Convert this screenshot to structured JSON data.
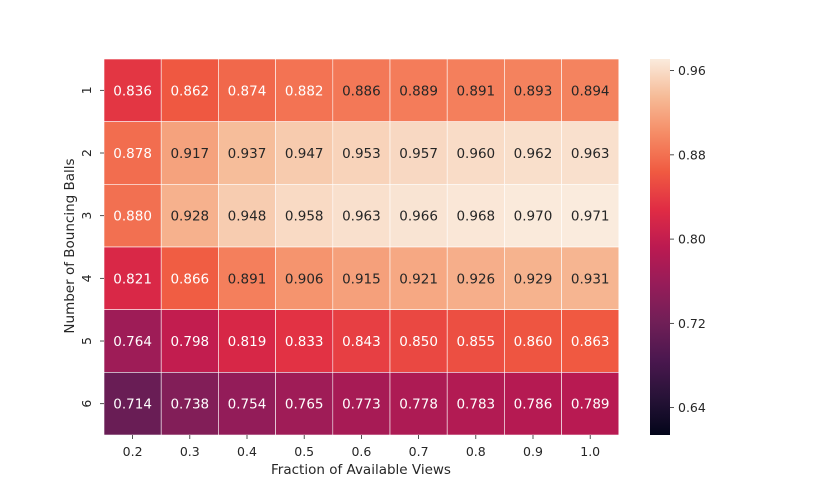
{
  "chart_data": {
    "type": "heatmap",
    "title": "",
    "xlabel": "Fraction of Available Views",
    "ylabel": "Number of Bouncing Balls",
    "x_categories": [
      "0.2",
      "0.3",
      "0.4",
      "0.5",
      "0.6",
      "0.7",
      "0.8",
      "0.9",
      "1.0"
    ],
    "y_categories": [
      "1",
      "2",
      "3",
      "4",
      "5",
      "6"
    ],
    "values": [
      [
        0.836,
        0.862,
        0.874,
        0.882,
        0.886,
        0.889,
        0.891,
        0.893,
        0.894
      ],
      [
        0.878,
        0.917,
        0.937,
        0.947,
        0.953,
        0.957,
        0.96,
        0.962,
        0.963
      ],
      [
        0.88,
        0.928,
        0.948,
        0.958,
        0.963,
        0.966,
        0.968,
        0.97,
        0.971
      ],
      [
        0.821,
        0.866,
        0.891,
        0.906,
        0.915,
        0.921,
        0.926,
        0.929,
        0.931
      ],
      [
        0.764,
        0.798,
        0.819,
        0.833,
        0.843,
        0.85,
        0.855,
        0.86,
        0.863
      ],
      [
        0.714,
        0.738,
        0.754,
        0.765,
        0.773,
        0.778,
        0.783,
        0.786,
        0.789
      ]
    ],
    "value_labels": [
      [
        "0.836",
        "0.862",
        "0.874",
        "0.882",
        "0.886",
        "0.889",
        "0.891",
        "0.893",
        "0.894"
      ],
      [
        "0.878",
        "0.917",
        "0.937",
        "0.947",
        "0.953",
        "0.957",
        "0.960",
        "0.962",
        "0.963"
      ],
      [
        "0.880",
        "0.928",
        "0.948",
        "0.958",
        "0.963",
        "0.966",
        "0.968",
        "0.970",
        "0.971"
      ],
      [
        "0.821",
        "0.866",
        "0.891",
        "0.906",
        "0.915",
        "0.921",
        "0.926",
        "0.929",
        "0.931"
      ],
      [
        "0.764",
        "0.798",
        "0.819",
        "0.833",
        "0.843",
        "0.850",
        "0.855",
        "0.860",
        "0.863"
      ],
      [
        "0.714",
        "0.738",
        "0.754",
        "0.765",
        "0.773",
        "0.778",
        "0.783",
        "0.786",
        "0.789"
      ]
    ],
    "colormap": "rocket",
    "color_range": [
      0.614,
      0.971
    ],
    "colorbar_ticks": [
      0.64,
      0.72,
      0.8,
      0.88,
      0.96
    ],
    "colorbar_tick_labels": [
      "0.64",
      "0.72",
      "0.80",
      "0.88",
      "0.96"
    ],
    "colorbar_position": "right",
    "grid": false,
    "colors": {
      "text_light": "#ffffff",
      "text_dark": "#262626",
      "cell_border": "#ffffff"
    }
  }
}
